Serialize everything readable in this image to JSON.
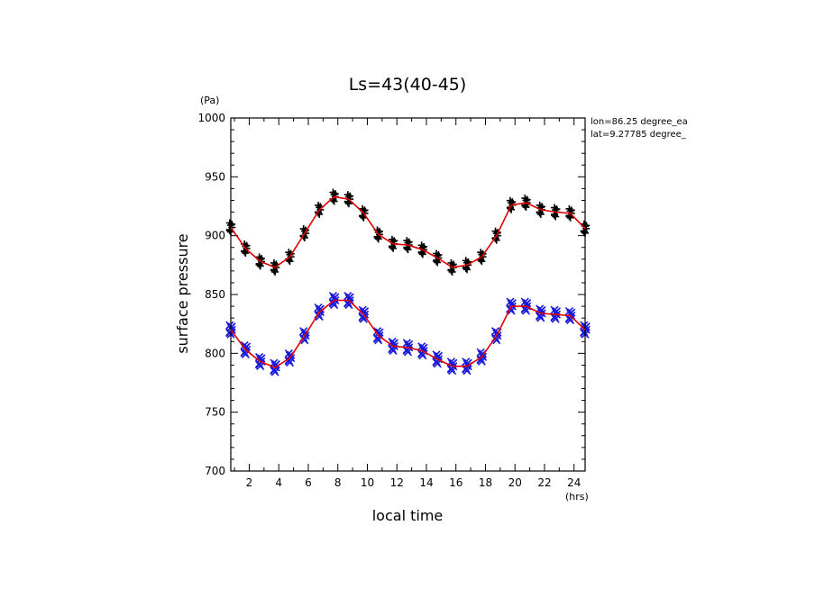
{
  "chart_data": {
    "type": "scatter",
    "title": "Ls=43(40-45)",
    "xlabel": "local time",
    "ylabel": "surface pressure",
    "x_unit": "(hrs)",
    "y_unit": "(Pa)",
    "xlim": [
      0.75,
      24.75
    ],
    "ylim": [
      700,
      1000
    ],
    "x_ticks": [
      2,
      4,
      6,
      8,
      10,
      12,
      14,
      16,
      18,
      20,
      22,
      24
    ],
    "y_ticks": [
      700,
      750,
      800,
      850,
      900,
      950,
      1000
    ],
    "annotations": [
      "lon=86.25 degree_ea",
      "lat=9.27785 degree_"
    ],
    "colors": {
      "fit_line": "#e00000",
      "upper_markers": "#000000",
      "lower_markers": "#1a1adc"
    },
    "series": [
      {
        "marker": "plus",
        "x": [
          0.75,
          1.75,
          2.75,
          3.75,
          4.75,
          5.75,
          6.75,
          7.75,
          8.75,
          9.75,
          10.75,
          11.75,
          12.75,
          13.75,
          14.75,
          15.75,
          16.75,
          17.75,
          18.75,
          19.75,
          20.75,
          21.75,
          22.75,
          23.75,
          24.75
        ],
        "y": [
          907,
          889,
          878,
          873,
          882,
          902,
          922,
          933,
          931,
          919,
          901,
          893,
          892,
          888,
          881,
          873,
          875,
          882,
          900,
          926,
          928,
          922,
          920,
          919,
          906
        ]
      },
      {
        "marker": "x",
        "x": [
          0.75,
          1.75,
          2.75,
          3.75,
          4.75,
          5.75,
          6.75,
          7.75,
          8.75,
          9.75,
          10.75,
          11.75,
          12.75,
          13.75,
          14.75,
          15.75,
          16.75,
          17.75,
          18.75,
          19.75,
          20.75,
          21.75,
          22.75,
          23.75,
          24.75
        ],
        "y": [
          820,
          803,
          793,
          788,
          796,
          815,
          835,
          845,
          845,
          833,
          815,
          806,
          805,
          802,
          795,
          789,
          789,
          797,
          815,
          840,
          840,
          834,
          833,
          832,
          820
        ]
      }
    ]
  }
}
